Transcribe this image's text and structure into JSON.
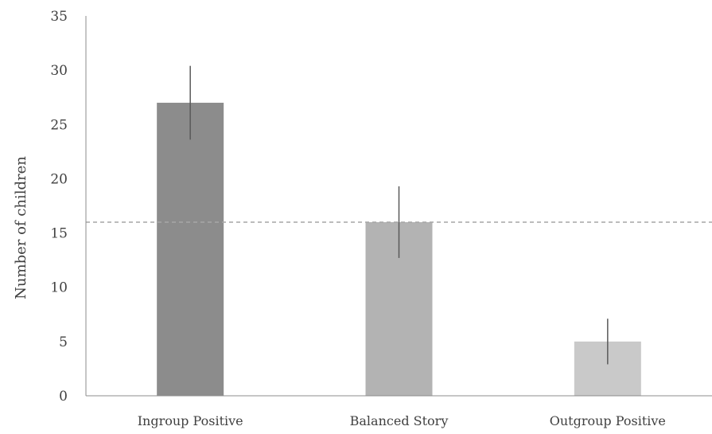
{
  "chart_data": {
    "type": "bar",
    "title": "",
    "xlabel": "",
    "ylabel": "Number of children",
    "ylim": [
      0,
      35
    ],
    "yticks": [
      0,
      5,
      10,
      15,
      20,
      25,
      30,
      35
    ],
    "grid": false,
    "legend": "none",
    "categories": [
      "Ingroup Positive",
      "Balanced Story",
      "Outgroup Positive"
    ],
    "values": [
      27,
      16,
      5
    ],
    "error_bars": [
      {
        "low": 23.6,
        "high": 30.4
      },
      {
        "low": 12.7,
        "high": 19.3
      },
      {
        "low": 2.9,
        "high": 7.1
      }
    ],
    "reference_line": {
      "value": 16,
      "style": "dashed"
    },
    "colors": {
      "bars": [
        "#8c8c8c",
        "#b3b3b3",
        "#c9c9c9"
      ],
      "error_bar": "#595959",
      "reference_line": "#a6a6a6",
      "axis": "#8c8c8c",
      "text": "#404040"
    }
  }
}
